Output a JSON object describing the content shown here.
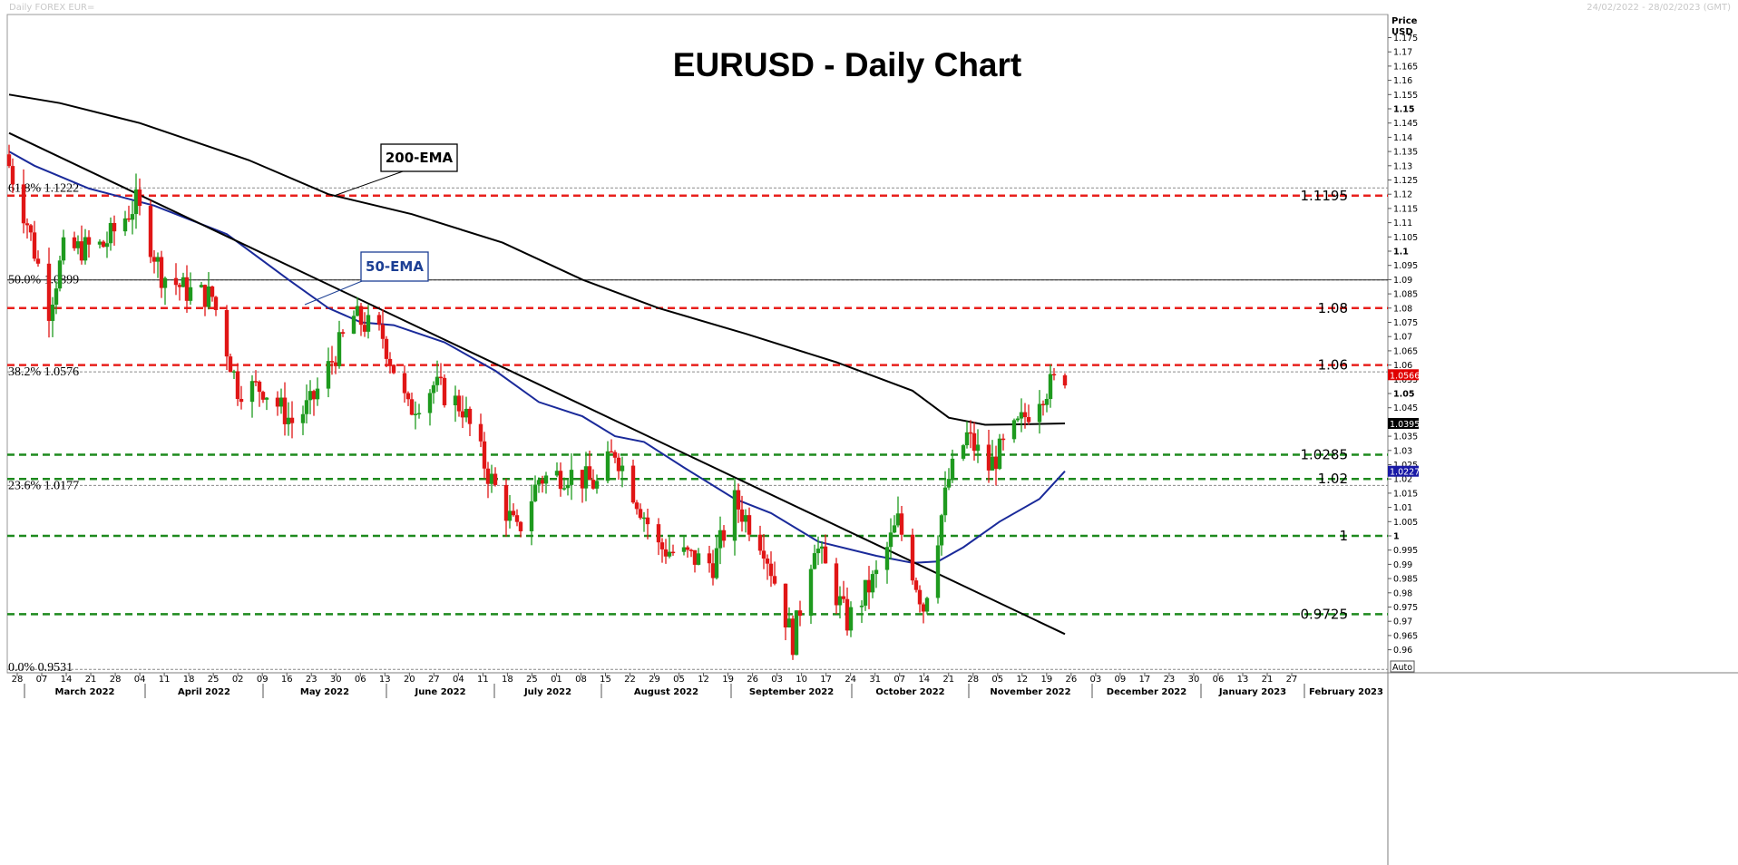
{
  "header": {
    "left": "Daily FOREX EUR=",
    "right": "24/02/2022 - 28/02/2023 (GMT)"
  },
  "chart_data": {
    "type": "candlestick",
    "title": "EURUSD - Daily Chart",
    "axis_title": [
      "Price",
      "USD"
    ],
    "ylim": [
      0.955,
      1.18
    ],
    "yticks": [
      "1.175",
      "1.17",
      "1.165",
      "1.16",
      "1.155",
      "1.15",
      "1.145",
      "1.14",
      "1.135",
      "1.13",
      "1.125",
      "1.12",
      "1.115",
      "1.11",
      "1.105",
      "1.1",
      "1.095",
      "1.09",
      "1.085",
      "1.08",
      "1.075",
      "1.07",
      "1.065",
      "1.06",
      "1.055",
      "1.05",
      "1.045",
      "1.04",
      "1.035",
      "1.03",
      "1.025",
      "1.02",
      "1.015",
      "1.01",
      "1.005",
      "1",
      "0.995",
      "0.99",
      "0.985",
      "0.98",
      "0.975",
      "0.97",
      "0.965",
      "0.96"
    ],
    "bold_yticks": [
      "1.15",
      "1.1",
      "1.05",
      "1"
    ],
    "x_day_ticks": [
      "28",
      "07",
      "14",
      "21",
      "28",
      "04",
      "11",
      "18",
      "25",
      "02",
      "09",
      "16",
      "23",
      "30",
      "06",
      "13",
      "20",
      "27",
      "04",
      "11",
      "18",
      "25",
      "01",
      "08",
      "15",
      "22",
      "29",
      "05",
      "12",
      "19",
      "26",
      "03",
      "10",
      "17",
      "24",
      "31",
      "07",
      "14",
      "21",
      "28",
      "05",
      "12",
      "19",
      "26",
      "03",
      "09",
      "17",
      "23",
      "30",
      "06",
      "13",
      "21",
      "27"
    ],
    "months": [
      "March 2022",
      "April 2022",
      "May 2022",
      "June 2022",
      "July 2022",
      "August 2022",
      "September 2022",
      "October 2022",
      "November 2022",
      "December 2022",
      "January 2023",
      "February 2023"
    ],
    "price_tags": [
      {
        "value": 1.0566,
        "label": "1.0566",
        "bg": "#e00000",
        "color": "#ffffff"
      },
      {
        "value": 1.0395,
        "label": "1.0395",
        "bg": "#000000",
        "color": "#ffffff"
      },
      {
        "value": 1.0227,
        "label": "1.0227",
        "bg": "#1a1aa6",
        "color": "#ffffff"
      }
    ],
    "auto_label": "Auto",
    "red_levels": [
      {
        "value": 1.1195,
        "label": "1.1195"
      },
      {
        "value": 1.08,
        "label": "1.08"
      },
      {
        "value": 1.06,
        "label": "1.06"
      }
    ],
    "green_levels": [
      {
        "value": 1.0285,
        "label": "1.0285"
      },
      {
        "value": 1.02,
        "label": "1.02"
      },
      {
        "value": 1.0,
        "label": "1"
      },
      {
        "value": 0.9725,
        "label": "0.9725"
      }
    ],
    "fib_levels": [
      {
        "value": 1.1222,
        "label": "61.8%   1.1222"
      },
      {
        "value": 1.0899,
        "label": "50.0%   1.0899"
      },
      {
        "value": 1.0576,
        "label": "38.2%   1.0576"
      },
      {
        "value": 1.0177,
        "label": "23.6%   1.0177"
      },
      {
        "value": 0.9531,
        "label": "0.0%    0.9531"
      }
    ],
    "annotations": [
      {
        "label": "200-EMA",
        "color": "#000000"
      },
      {
        "label": "50-EMA",
        "color": "#1c3f94"
      }
    ],
    "ema200": [
      [
        "2022-02-24",
        1.155
      ],
      [
        "2022-03-10",
        1.152
      ],
      [
        "2022-04-01",
        1.145
      ],
      [
        "2022-05-01",
        1.132
      ],
      [
        "2022-05-23",
        1.12
      ],
      [
        "2022-06-15",
        1.113
      ],
      [
        "2022-07-10",
        1.103
      ],
      [
        "2022-08-01",
        1.09
      ],
      [
        "2022-08-22",
        1.08
      ],
      [
        "2022-09-15",
        1.071
      ],
      [
        "2022-10-10",
        1.061
      ],
      [
        "2022-10-31",
        1.051
      ],
      [
        "2022-11-10",
        1.0415
      ],
      [
        "2022-11-20",
        1.039
      ],
      [
        "2022-12-01",
        1.0392
      ],
      [
        "2022-12-12",
        1.0395
      ]
    ],
    "ema50": [
      [
        "2022-02-24",
        1.135
      ],
      [
        "2022-03-03",
        1.13
      ],
      [
        "2022-03-18",
        1.122
      ],
      [
        "2022-04-05",
        1.116
      ],
      [
        "2022-04-25",
        1.106
      ],
      [
        "2022-05-12",
        1.09
      ],
      [
        "2022-05-23",
        1.08
      ],
      [
        "2022-06-01",
        1.075
      ],
      [
        "2022-06-10",
        1.074
      ],
      [
        "2022-06-24",
        1.068
      ],
      [
        "2022-07-08",
        1.058
      ],
      [
        "2022-07-20",
        1.047
      ],
      [
        "2022-08-01",
        1.042
      ],
      [
        "2022-08-10",
        1.035
      ],
      [
        "2022-08-18",
        1.033
      ],
      [
        "2022-08-29",
        1.024
      ],
      [
        "2022-09-12",
        1.013
      ],
      [
        "2022-09-22",
        1.008
      ],
      [
        "2022-10-05",
        0.998
      ],
      [
        "2022-10-21",
        0.993
      ],
      [
        "2022-10-31",
        0.9905
      ],
      [
        "2022-11-07",
        0.991
      ],
      [
        "2022-11-14",
        0.996
      ],
      [
        "2022-11-24",
        1.005
      ],
      [
        "2022-12-05",
        1.013
      ],
      [
        "2022-12-12",
        1.0227
      ]
    ],
    "trendline": [
      [
        "2022-02-24",
        1.1415
      ],
      [
        "2022-12-12",
        0.9655
      ]
    ],
    "ohlc_anchors": [
      [
        "2022-02-24",
        1.13
      ],
      [
        "2022-03-01",
        1.11
      ],
      [
        "2022-03-07",
        1.08
      ],
      [
        "2022-03-11",
        1.1
      ],
      [
        "2022-03-22",
        1.102
      ],
      [
        "2022-03-31",
        1.117
      ],
      [
        "2022-04-07",
        1.092
      ],
      [
        "2022-04-14",
        1.086
      ],
      [
        "2022-04-21",
        1.084
      ],
      [
        "2022-04-28",
        1.052
      ],
      [
        "2022-05-05",
        1.052
      ],
      [
        "2022-05-13",
        1.04
      ],
      [
        "2022-05-18",
        1.046
      ],
      [
        "2022-05-30",
        1.077
      ],
      [
        "2022-06-07",
        1.07
      ],
      [
        "2022-06-14",
        1.044
      ],
      [
        "2022-06-21",
        1.053
      ],
      [
        "2022-06-29",
        1.045
      ],
      [
        "2022-07-06",
        1.022
      ],
      [
        "2022-07-14",
        1.001
      ],
      [
        "2022-07-20",
        1.02
      ],
      [
        "2022-07-28",
        1.022
      ],
      [
        "2022-08-05",
        1.018
      ],
      [
        "2022-08-10",
        1.03
      ],
      [
        "2022-08-22",
        0.996
      ],
      [
        "2022-09-06",
        0.99
      ],
      [
        "2022-09-12",
        1.012
      ],
      [
        "2022-09-20",
        0.997
      ],
      [
        "2022-09-28",
        0.963
      ],
      [
        "2022-10-04",
        0.998
      ],
      [
        "2022-10-13",
        0.97
      ],
      [
        "2022-10-21",
        0.986
      ],
      [
        "2022-10-27",
        1.005
      ],
      [
        "2022-11-03",
        0.975
      ],
      [
        "2022-11-10",
        1.02
      ],
      [
        "2022-11-15",
        1.035
      ],
      [
        "2022-11-21",
        1.024
      ],
      [
        "2022-11-30",
        1.04
      ],
      [
        "2022-12-05",
        1.05
      ],
      [
        "2022-12-12",
        1.0566
      ]
    ]
  }
}
